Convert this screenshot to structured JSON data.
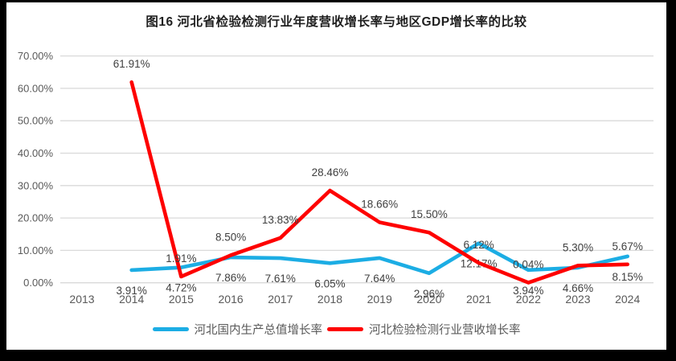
{
  "colors": {
    "background": "#ffffff",
    "frame_border": "#000000",
    "gridline": "#d9d9d9",
    "axis_text": "#595959",
    "data_label": "#404040",
    "title_text": "#1f1f1f",
    "gdp_line": "#1cade4",
    "revenue_line": "#fe0000"
  },
  "chart_data": {
    "type": "line",
    "title": "图16 河北省检验检测行业年度营收增长率与地区GDP增长率的比较",
    "xlabel": "",
    "ylabel": "",
    "categories": [
      "2013",
      "2014",
      "2015",
      "2016",
      "2017",
      "2018",
      "2019",
      "2020",
      "2021",
      "2022",
      "2023",
      "2024"
    ],
    "y_ticks": [
      0,
      10,
      20,
      30,
      40,
      50,
      60,
      70
    ],
    "y_tick_labels": [
      "0.00%",
      "10.00%",
      "20.00%",
      "30.00%",
      "40.00%",
      "50.00%",
      "60.00%",
      "70.00%"
    ],
    "ylim": [
      0,
      70
    ],
    "grid": true,
    "legend_position": "bottom",
    "data_label_format": "0.00%",
    "series": [
      {
        "name": "河北国内生产总值增长率",
        "color": "#1cade4",
        "label_position": "below",
        "values": [
          null,
          3.91,
          4.72,
          7.86,
          7.61,
          6.05,
          7.64,
          2.96,
          12.17,
          3.94,
          4.66,
          8.15
        ]
      },
      {
        "name": "河北检验检测行业营收增长率",
        "color": "#fe0000",
        "label_position": "above",
        "values": [
          null,
          61.91,
          1.91,
          8.5,
          13.83,
          28.46,
          18.66,
          15.5,
          6.12,
          0.04,
          5.3,
          5.67
        ]
      }
    ]
  }
}
